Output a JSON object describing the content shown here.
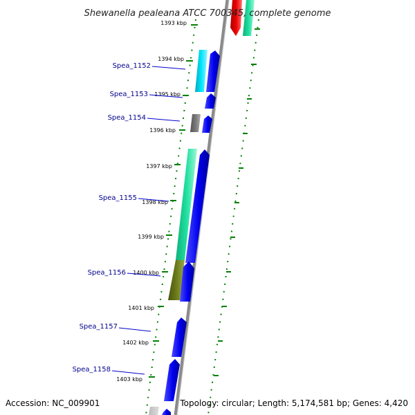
{
  "title": "Shewanella pealeana ATCC 700345, complete genome",
  "footer": {
    "accession": "Accession: NC_009901",
    "summary": "Topology: circular; Length: 5,174,581 bp; Genes: 4,420"
  },
  "ticks": [
    "1393 kbp",
    "1394 kbp",
    "1395 kbp",
    "1396 kbp",
    "1397 kbp",
    "1398 kbp",
    "1399 kbp",
    "1400 kbp",
    "1401 kbp",
    "1402 kbp",
    "1403 kbp"
  ],
  "genes": [
    {
      "name": "Spea_1152"
    },
    {
      "name": "Spea_1153"
    },
    {
      "name": "Spea_1154"
    },
    {
      "name": "Spea_1155"
    },
    {
      "name": "Spea_1156"
    },
    {
      "name": "Spea_1157"
    },
    {
      "name": "Spea_1158"
    }
  ],
  "colors": {
    "cds": "#0000ee",
    "label": "#00008b",
    "backbone": "#888888",
    "gc_dots": "#008000",
    "cyan": "#00e5ff",
    "sea_green": "#1fe0a0",
    "gray": "#707070",
    "olive": "#6b7a1a",
    "red": "#ee0000"
  }
}
